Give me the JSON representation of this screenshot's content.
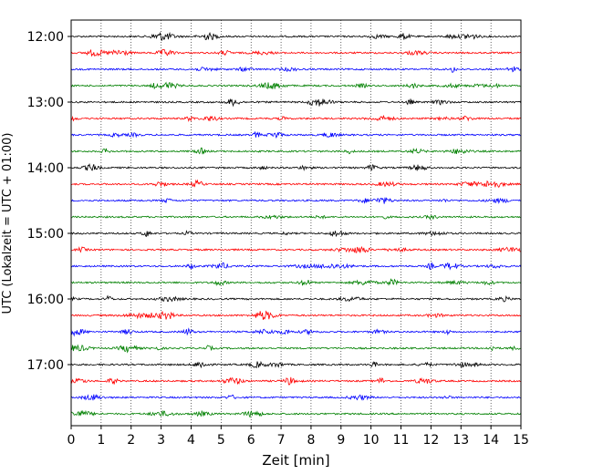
{
  "chart_data": {
    "type": "line",
    "title": "",
    "xlabel": "Zeit  [min]",
    "ylabel": "UTC (Lokalzeit = UTC + 01:00)",
    "xlim": [
      0,
      15
    ],
    "x_ticks": [
      0,
      1,
      2,
      3,
      4,
      5,
      6,
      7,
      8,
      9,
      10,
      11,
      12,
      13,
      14,
      15
    ],
    "x_tick_labels": [
      "0",
      "1",
      "2",
      "3",
      "4",
      "5",
      "6",
      "7",
      "8",
      "9",
      "10",
      "11",
      "12",
      "13",
      "14",
      "15"
    ],
    "y_tick_labels": [
      "12:00",
      "13:00",
      "14:00",
      "15:00",
      "16:00",
      "17:00"
    ],
    "y_tick_rows": [
      0,
      4,
      8,
      12,
      16,
      20
    ],
    "grid": "vertical dotted",
    "trace_interval_minutes": 15,
    "trace_start": "12:00",
    "trace_count": 24,
    "trace_colors": [
      "#000000",
      "#ff0000",
      "#0000ff",
      "#008000"
    ]
  }
}
